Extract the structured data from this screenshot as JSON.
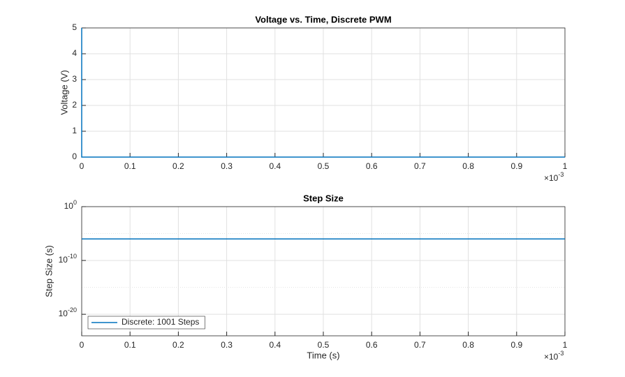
{
  "chart_data": [
    {
      "type": "line",
      "title": "Voltage vs. Time, Discrete PWM",
      "ylabel": "Voltage (V)",
      "x_multiplier": "×10^-3",
      "xlim": [
        0,
        1
      ],
      "xticks": [
        0,
        0.1,
        0.2,
        0.3,
        0.4,
        0.5,
        0.6,
        0.7,
        0.8,
        0.9,
        1
      ],
      "ylim": [
        0,
        5
      ],
      "yticks": [
        0,
        1,
        2,
        3,
        4,
        5
      ],
      "grid": true,
      "log_y": false,
      "x": [
        0,
        0,
        1
      ],
      "series": [
        {
          "name": "Voltage",
          "color": "#0072bd",
          "values": [
            5,
            0,
            0
          ]
        }
      ]
    },
    {
      "type": "line",
      "title": "Step Size",
      "xlabel": "Time (s)",
      "ylabel": "Step Size (s)",
      "x_multiplier": "×10^-3",
      "xlim": [
        0,
        1
      ],
      "xticks": [
        0,
        0.1,
        0.2,
        0.3,
        0.4,
        0.5,
        0.6,
        0.7,
        0.8,
        0.9,
        1
      ],
      "ylim": [
        1e-24,
        1
      ],
      "yticks": [
        {
          "value": 1e-20,
          "label": "10^-20"
        },
        {
          "value": 1e-10,
          "label": "10^-10"
        },
        {
          "value": 1,
          "label": "10^0"
        }
      ],
      "minor_yticks": [
        1e-15,
        1e-05
      ],
      "grid": true,
      "log_y": true,
      "legend": "lower left",
      "x": [
        0,
        1
      ],
      "series": [
        {
          "name": "Discrete: 1001 Steps",
          "color": "#0072bd",
          "values": [
            1e-06,
            1e-06
          ]
        }
      ]
    }
  ]
}
